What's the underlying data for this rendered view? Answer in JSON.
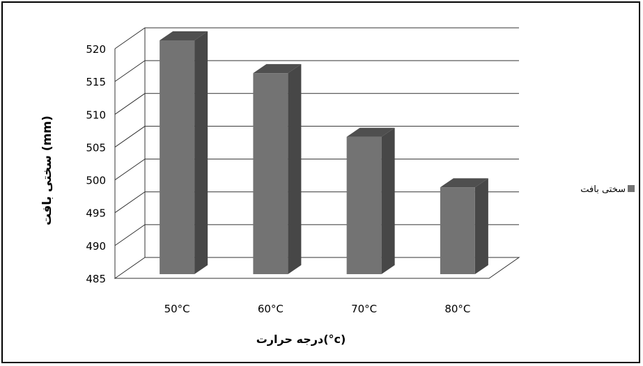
{
  "chart_data": {
    "type": "bar",
    "categories": [
      "50°C",
      "60°C",
      "70°C",
      "80°C"
    ],
    "series": [
      {
        "name": "سختی بافت",
        "values": [
          520,
          515,
          505.3,
          497.6
        ]
      }
    ],
    "xlabel": "درجه حرارت(°c)",
    "ylabel": "سختی بافت (mm)",
    "ylim": [
      485,
      520
    ],
    "yticks": [
      "485",
      "490",
      "495",
      "500",
      "505",
      "510",
      "515",
      "520"
    ],
    "grid": true,
    "legend": "right",
    "colors": {
      "bar_front": "#737373",
      "bar_side": "#474747",
      "bar_top": "#4f4f4f",
      "grid": "#333333"
    }
  }
}
